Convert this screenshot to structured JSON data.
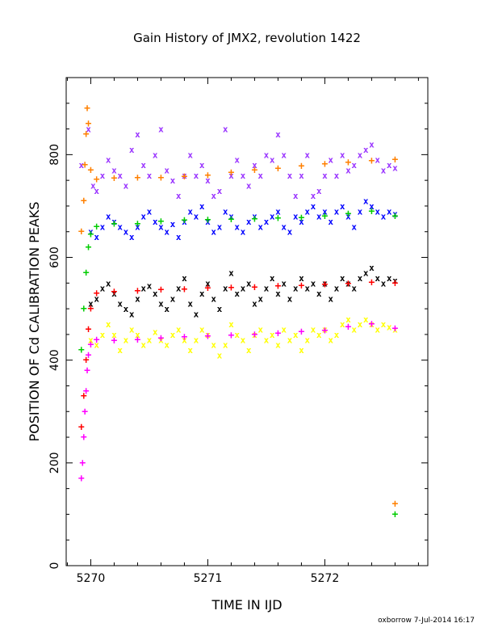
{
  "chart_data": {
    "type": "scatter",
    "title": "Gain History of JMX2, revolution 1422",
    "xlabel": "TIME IN IJD",
    "ylabel": "POSITION OF Cd CALIBRATION PEAKS",
    "credit": "oxborrow  7-Jul-2014 16:17",
    "xlim": [
      5269.79,
      5272.88
    ],
    "ylim": [
      0,
      950
    ],
    "xticks": [
      "5270",
      "5271",
      "5272"
    ],
    "yticks": [
      "0",
      "200",
      "400",
      "600",
      "800"
    ],
    "grid": false,
    "legend": "none",
    "series": [
      {
        "marker": "x",
        "color": "#9933ff",
        "x": [
          5269.92,
          5269.98,
          5270.02,
          5270.05,
          5270.1,
          5270.15,
          5270.2,
          5270.25,
          5270.3,
          5270.35,
          5270.4,
          5270.45,
          5270.5,
          5270.55,
          5270.6,
          5270.65,
          5270.7,
          5270.75,
          5270.8,
          5270.85,
          5270.9,
          5270.95,
          5271.0,
          5271.05,
          5271.1,
          5271.15,
          5271.2,
          5271.25,
          5271.3,
          5271.35,
          5271.4,
          5271.45,
          5271.5,
          5271.55,
          5271.6,
          5271.65,
          5271.7,
          5271.75,
          5271.8,
          5271.85,
          5271.9,
          5271.95,
          5272.0,
          5272.05,
          5272.1,
          5272.15,
          5272.2,
          5272.25,
          5272.3,
          5272.35,
          5272.4,
          5272.45,
          5272.5,
          5272.55,
          5272.6
        ],
        "y": [
          780,
          850,
          740,
          730,
          760,
          790,
          770,
          760,
          740,
          810,
          840,
          780,
          760,
          800,
          850,
          770,
          750,
          720,
          760,
          800,
          760,
          780,
          750,
          720,
          730,
          850,
          760,
          790,
          760,
          740,
          780,
          760,
          800,
          790,
          840,
          800,
          760,
          720,
          760,
          800,
          720,
          730,
          760,
          790,
          760,
          800,
          770,
          780,
          800,
          810,
          820,
          790,
          770,
          780,
          775
        ]
      },
      {
        "marker": "x",
        "color": "#0000ff",
        "x": [
          5270.0,
          5270.05,
          5270.1,
          5270.15,
          5270.2,
          5270.25,
          5270.3,
          5270.35,
          5270.4,
          5270.45,
          5270.5,
          5270.55,
          5270.6,
          5270.65,
          5270.7,
          5270.75,
          5270.8,
          5270.85,
          5270.9,
          5270.95,
          5271.0,
          5271.05,
          5271.1,
          5271.15,
          5271.2,
          5271.25,
          5271.3,
          5271.35,
          5271.4,
          5271.45,
          5271.5,
          5271.55,
          5271.6,
          5271.65,
          5271.7,
          5271.75,
          5271.8,
          5271.85,
          5271.9,
          5271.95,
          5272.0,
          5272.05,
          5272.1,
          5272.15,
          5272.2,
          5272.25,
          5272.3,
          5272.35,
          5272.4,
          5272.45,
          5272.5,
          5272.55,
          5272.6
        ],
        "y": [
          650,
          640,
          660,
          680,
          670,
          660,
          650,
          640,
          660,
          680,
          690,
          670,
          660,
          650,
          665,
          640,
          670,
          690,
          680,
          700,
          670,
          650,
          660,
          690,
          680,
          660,
          650,
          670,
          680,
          660,
          670,
          680,
          690,
          660,
          650,
          680,
          670,
          690,
          700,
          680,
          690,
          670,
          690,
          700,
          680,
          660,
          690,
          710,
          700,
          690,
          680,
          690,
          685
        ]
      },
      {
        "marker": "x",
        "color": "#000000",
        "x": [
          5270.0,
          5270.05,
          5270.1,
          5270.15,
          5270.2,
          5270.25,
          5270.3,
          5270.35,
          5270.4,
          5270.45,
          5270.5,
          5270.55,
          5270.6,
          5270.65,
          5270.7,
          5270.75,
          5270.8,
          5270.85,
          5270.9,
          5270.95,
          5271.0,
          5271.05,
          5271.1,
          5271.15,
          5271.2,
          5271.25,
          5271.3,
          5271.35,
          5271.4,
          5271.45,
          5271.5,
          5271.55,
          5271.6,
          5271.65,
          5271.7,
          5271.75,
          5271.8,
          5271.85,
          5271.9,
          5271.95,
          5272.0,
          5272.05,
          5272.1,
          5272.15,
          5272.2,
          5272.25,
          5272.3,
          5272.35,
          5272.4,
          5272.45,
          5272.5,
          5272.55,
          5272.6
        ],
        "y": [
          510,
          520,
          540,
          550,
          530,
          510,
          500,
          490,
          520,
          540,
          545,
          530,
          510,
          500,
          520,
          540,
          560,
          510,
          490,
          530,
          550,
          520,
          500,
          540,
          570,
          530,
          540,
          550,
          510,
          520,
          540,
          560,
          530,
          550,
          520,
          540,
          560,
          540,
          550,
          530,
          550,
          520,
          540,
          560,
          550,
          540,
          560,
          570,
          580,
          560,
          550,
          560,
          555
        ]
      },
      {
        "marker": "x",
        "color": "#ffff00",
        "x": [
          5270.0,
          5270.05,
          5270.1,
          5270.15,
          5270.2,
          5270.25,
          5270.3,
          5270.35,
          5270.4,
          5270.45,
          5270.5,
          5270.55,
          5270.6,
          5270.65,
          5270.7,
          5270.75,
          5270.8,
          5270.85,
          5270.9,
          5270.95,
          5271.0,
          5271.05,
          5271.1,
          5271.15,
          5271.2,
          5271.25,
          5271.3,
          5271.35,
          5271.4,
          5271.45,
          5271.5,
          5271.55,
          5271.6,
          5271.65,
          5271.7,
          5271.75,
          5271.8,
          5271.85,
          5271.9,
          5271.95,
          5272.0,
          5272.05,
          5272.1,
          5272.15,
          5272.2,
          5272.25,
          5272.3,
          5272.35,
          5272.4,
          5272.45,
          5272.5,
          5272.55,
          5272.6
        ],
        "y": [
          440,
          430,
          450,
          470,
          450,
          420,
          440,
          460,
          450,
          430,
          440,
          455,
          440,
          430,
          450,
          460,
          440,
          420,
          440,
          460,
          450,
          430,
          410,
          430,
          470,
          450,
          440,
          420,
          450,
          460,
          440,
          450,
          430,
          460,
          440,
          450,
          420,
          440,
          460,
          450,
          460,
          440,
          450,
          470,
          480,
          460,
          470,
          480,
          470,
          460,
          470,
          465,
          460
        ]
      },
      {
        "marker": "+",
        "color": "#ff8000",
        "x": [
          5269.92,
          5269.94,
          5269.95,
          5269.96,
          5269.97,
          5269.98,
          5270.0,
          5270.05,
          5270.2,
          5270.4,
          5270.6,
          5270.8,
          5271.0,
          5271.2,
          5271.4,
          5271.6,
          5271.8,
          5272.0,
          5272.2,
          5272.4,
          5272.6,
          5272.6
        ],
        "y": [
          650,
          710,
          780,
          840,
          890,
          860,
          770,
          752,
          754,
          755,
          755,
          757,
          760,
          765,
          770,
          773,
          778,
          782,
          785,
          788,
          790,
          120
        ]
      },
      {
        "marker": "+",
        "color": "#00cc00",
        "x": [
          5269.92,
          5269.94,
          5269.96,
          5269.98,
          5270.0,
          5270.05,
          5270.2,
          5270.4,
          5270.6,
          5270.8,
          5271.0,
          5271.2,
          5271.4,
          5271.6,
          5271.8,
          5272.0,
          5272.2,
          5272.4,
          5272.6,
          5272.6
        ],
        "y": [
          420,
          500,
          570,
          620,
          645,
          660,
          665,
          665,
          670,
          672,
          673,
          674,
          675,
          676,
          677,
          680,
          685,
          690,
          680,
          100
        ]
      },
      {
        "marker": "+",
        "color": "#ff0000",
        "x": [
          5269.92,
          5269.94,
          5269.96,
          5269.98,
          5270.0,
          5270.05,
          5270.2,
          5270.4,
          5270.6,
          5270.8,
          5271.0,
          5271.2,
          5271.4,
          5271.6,
          5271.8,
          5272.0,
          5272.2,
          5272.4,
          5272.6
        ],
        "y": [
          270,
          330,
          400,
          460,
          500,
          530,
          533,
          535,
          537,
          538,
          540,
          541,
          542,
          544,
          545,
          547,
          549,
          551,
          550
        ]
      },
      {
        "marker": "+",
        "color": "#ff00ff",
        "x": [
          5269.92,
          5269.93,
          5269.94,
          5269.95,
          5269.96,
          5269.97,
          5269.98,
          5270.0,
          5270.05,
          5270.2,
          5270.4,
          5270.6,
          5270.8,
          5271.0,
          5271.2,
          5271.4,
          5271.6,
          5271.8,
          5272.0,
          5272.2,
          5272.4,
          5272.6
        ],
        "y": [
          170,
          200,
          250,
          300,
          340,
          380,
          410,
          430,
          440,
          438,
          440,
          443,
          445,
          447,
          448,
          450,
          452,
          455,
          458,
          465,
          470,
          462
        ]
      }
    ]
  }
}
